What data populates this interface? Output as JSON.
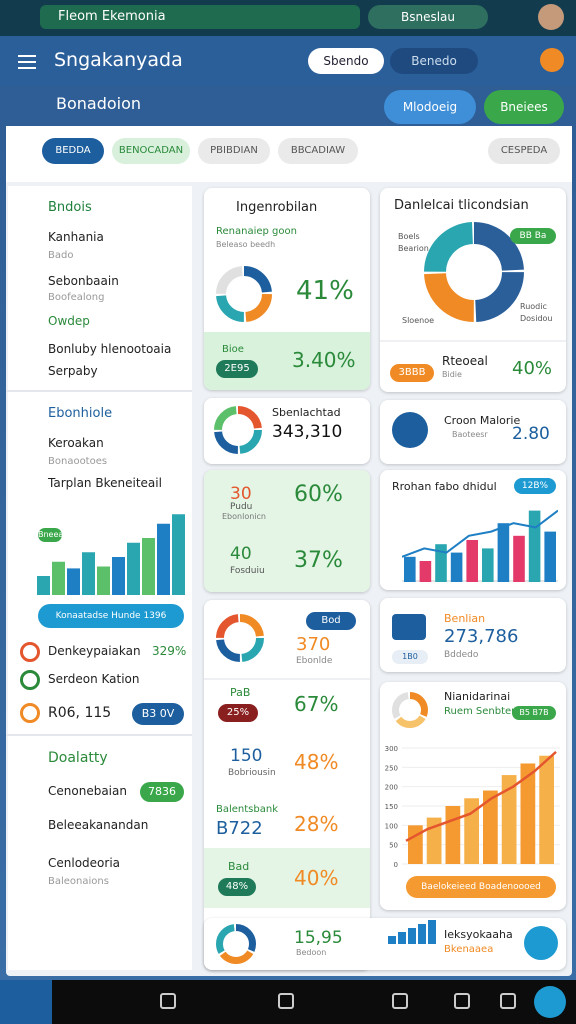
{
  "status_bar": {
    "search": "Fleom Ekemonia",
    "chip": "Bsneslau"
  },
  "app_bar": {
    "title": "Sngakanyada",
    "search_a": "Sbendo",
    "search_b": "Benedo"
  },
  "sub_bar": {
    "title": "Bonadoion",
    "tab_a": "Mlodoeig",
    "tab_b": "Bneiees"
  },
  "filters": [
    "BEDDA",
    "BENOCADAN",
    "PBIBDIAN",
    "BBCADIAW",
    "CESPEDA"
  ],
  "sidebar": {
    "s1": {
      "title": "Bndois",
      "items": [
        "Kanhania",
        "Bado",
        "Sebonbaain",
        "Boofealong",
        "Owdep",
        "Bonluby hlenootoaia",
        "Serpaby"
      ]
    },
    "s2": {
      "title": "Ebonhiole",
      "items": [
        "Keroakan",
        "Bonaootoes",
        "Tarplan Bkeneiteail"
      ],
      "chart_tag": "Bneea",
      "button": "Konaatadse Hunde 1396"
    },
    "stats": [
      {
        "label": "Denkeypaiakan",
        "value": "329%"
      },
      {
        "label": "Serdeon Kation"
      },
      {
        "label": "R06, 115",
        "value": "B3 0V"
      }
    ],
    "s3": {
      "title": "Doalatty",
      "items": [
        "Cenonebaian",
        "Beleeakanandan",
        "Cenlodeoria",
        "Baleonaions"
      ],
      "chip": "7836"
    }
  },
  "middle": {
    "a": {
      "title": "Ingenrobilan",
      "sub": "Renanaiep goon",
      "sub2": "Beleaso beedh",
      "pct": "41%",
      "chip_top": "Bioe",
      "chip": "2E95",
      "value": "3.40%"
    },
    "b": {
      "label": "Sbenlachtad",
      "value": "343,310"
    },
    "c": {
      "r1": {
        "num": "30",
        "lab": "Pudu",
        "lab2": "Ebonlonicn",
        "pct": "60%"
      },
      "r2": {
        "num": "40",
        "lab": "Fosduiu",
        "pct": "37%"
      }
    },
    "d": {
      "chip": "Bod",
      "num": "370",
      "sub": "Ebonlde",
      "r1": {
        "top": "PaB",
        "chip": "25%",
        "pct": "67%"
      },
      "r2": {
        "top": "150",
        "lab": "Bobriousin",
        "pct": "48%"
      },
      "r3": {
        "top": "Balentsbank",
        "big": "B722",
        "pct": "28%"
      },
      "r4": {
        "top": "Bad",
        "chip": "48%",
        "pct": "40%"
      }
    }
  },
  "right": {
    "e": {
      "title": "Danlelcai tlicondsian",
      "legend": [
        "Boels",
        "Bearion",
        "Ruodic",
        "Dosidou",
        "Sloenoe"
      ],
      "chip": "BB Ba",
      "chip2": "3BBB",
      "lab": "Rteoeal",
      "lab2": "Bidie",
      "pct": "40%"
    },
    "f": {
      "title": "Croon Malorie",
      "sub": "Baoteesr",
      "value": "2.80"
    },
    "g": {
      "title": "Rrohan fabo dhidul",
      "chip": "12B%"
    },
    "h": {
      "title": "Benlian",
      "value": "273,786",
      "sub": "Bddedo",
      "chip": "1B0"
    },
    "i": {
      "title": "Nianidarinai",
      "sub": "Ruem Senbten",
      "chip": "B5 B7B",
      "footer": "Baelokeieed Boadenoooed"
    }
  },
  "footer_card": {
    "num": "15,95",
    "sub": "Bedoon",
    "title": "Ieksyokaaha",
    "sub2": "Bkenaaea"
  },
  "charts": {
    "sidebar": {
      "type": "bar",
      "values": [
        20,
        35,
        28,
        45,
        30,
        40,
        55,
        60,
        75,
        85
      ],
      "ylim": [
        0,
        100
      ]
    },
    "trend": {
      "type": "bar",
      "values": [
        30,
        25,
        45,
        35,
        50,
        40,
        70,
        55,
        85,
        60
      ],
      "line": [
        30,
        40,
        35,
        55,
        60,
        70,
        65,
        85
      ],
      "ylim": [
        0,
        100
      ]
    },
    "growth": {
      "type": "bar",
      "values": [
        100,
        120,
        150,
        170,
        190,
        230,
        260,
        280
      ],
      "line": [
        60,
        90,
        110,
        130,
        170,
        200,
        240,
        290
      ],
      "ylim": [
        0,
        300
      ],
      "yticks": [
        0,
        50,
        100,
        150,
        200,
        250,
        300
      ]
    }
  }
}
